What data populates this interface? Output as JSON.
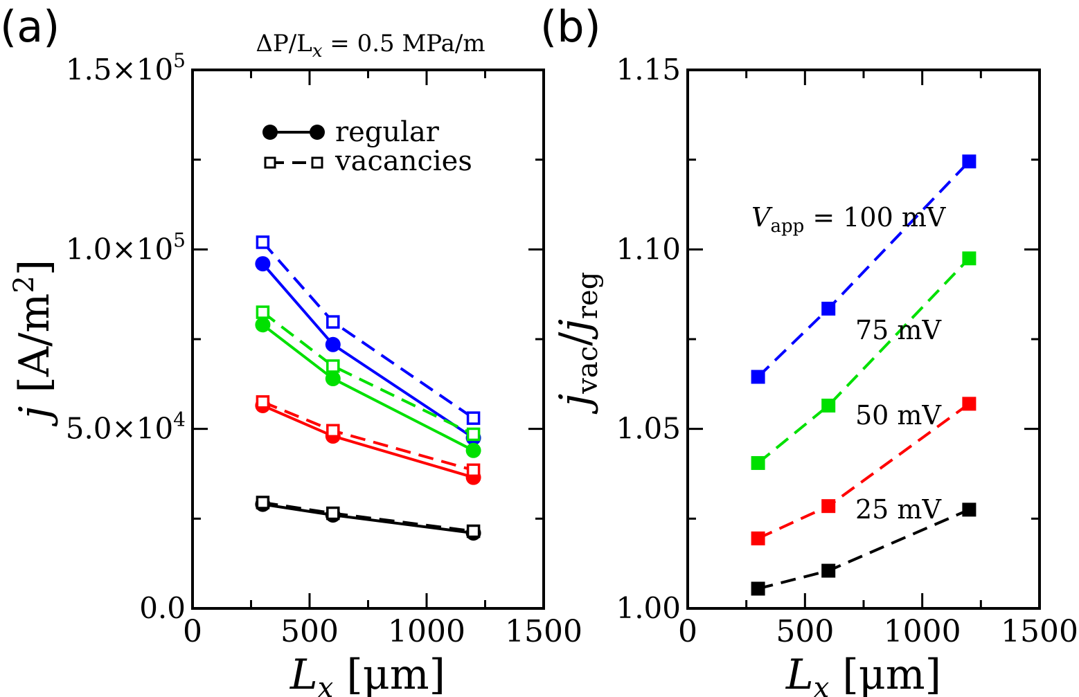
{
  "panel_labels": {
    "a": "(a)",
    "b": "(b)"
  },
  "chart_data": [
    {
      "id": "a",
      "type": "line",
      "title": "ΔP/L_x = 0.5 MPa/m",
      "title_parts": {
        "lhs": "ΔP/L",
        "sub": "x",
        "rhs": " = 0.5 MPa/m"
      },
      "xlabel": "L_x [μm]",
      "xlabel_parts": {
        "main": "L",
        "sub": "x",
        "unit": " [μm]"
      },
      "ylabel": "j [A/m^2]",
      "ylabel_parts": {
        "main": "j",
        "unit": " [A/m",
        "sup": "2",
        "close": "]"
      },
      "xlim": [
        0,
        1500
      ],
      "ylim": [
        0,
        150000
      ],
      "xticks": [
        0,
        500,
        1000,
        1500
      ],
      "xtick_labels": [
        "0",
        "500",
        "1000",
        "1500"
      ],
      "yticks": [
        0,
        50000,
        100000,
        150000
      ],
      "ytick_labels": [
        {
          "mant": "0.0",
          "exp": ""
        },
        {
          "mant": "5.0×10",
          "exp": "4"
        },
        {
          "mant": "1.0×10",
          "exp": "5"
        },
        {
          "mant": "1.5×10",
          "exp": "5"
        }
      ],
      "legend": {
        "position": "top-center",
        "entries": [
          {
            "label": "regular",
            "marker": "filled-circle",
            "line": "solid"
          },
          {
            "label": "vacancies",
            "marker": "open-square",
            "line": "dashed"
          }
        ]
      },
      "x": [
        300,
        600,
        1200
      ],
      "series": [
        {
          "name": "regular 100 mV",
          "color": "#0000ff",
          "style": "solid",
          "marker": "circle",
          "values": [
            96000,
            73500,
            47500
          ]
        },
        {
          "name": "vacancies 100 mV",
          "color": "#0000ff",
          "style": "dashed",
          "marker": "open-square",
          "values": [
            102000,
            79800,
            53000
          ]
        },
        {
          "name": "regular 75 mV",
          "color": "#00e000",
          "style": "solid",
          "marker": "circle",
          "values": [
            79000,
            64000,
            44000
          ]
        },
        {
          "name": "vacancies 75 mV",
          "color": "#00e000",
          "style": "dashed",
          "marker": "open-square",
          "values": [
            82500,
            67500,
            48500
          ]
        },
        {
          "name": "regular 50 mV",
          "color": "#ff0000",
          "style": "solid",
          "marker": "circle",
          "values": [
            56500,
            48000,
            36500
          ]
        },
        {
          "name": "vacancies 50 mV",
          "color": "#ff0000",
          "style": "dashed",
          "marker": "open-square",
          "values": [
            57500,
            49500,
            38500
          ]
        },
        {
          "name": "regular 25 mV",
          "color": "#000000",
          "style": "solid",
          "marker": "circle",
          "values": [
            29000,
            26000,
            21000
          ]
        },
        {
          "name": "vacancies 25 mV",
          "color": "#000000",
          "style": "dashed",
          "marker": "open-square",
          "values": [
            29500,
            26500,
            21500
          ]
        }
      ]
    },
    {
      "id": "b",
      "type": "line",
      "title": "",
      "xlabel": "L_x [μm]",
      "xlabel_parts": {
        "main": "L",
        "sub": "x",
        "unit": " [μm]"
      },
      "ylabel": "j_vac / j_reg",
      "ylabel_parts": {
        "j1": "j",
        "sub1": "vac",
        "slash": "/",
        "j2": "j",
        "sub2": "reg"
      },
      "xlim": [
        0,
        1500
      ],
      "ylim": [
        1.0,
        1.15
      ],
      "xticks": [
        0,
        500,
        1000,
        1500
      ],
      "xtick_labels": [
        "0",
        "500",
        "1000",
        "1500"
      ],
      "yticks": [
        1.0,
        1.05,
        1.1,
        1.15
      ],
      "ytick_labels": [
        "1.00",
        "1.05",
        "1.10",
        "1.15"
      ],
      "x": [
        300,
        600,
        1200
      ],
      "annotations": [
        {
          "text": "V_app = 100 mV",
          "main": "V",
          "sub": "app",
          "rest": " = 100 mV",
          "series": 0
        },
        {
          "text": "75 mV",
          "main": "75 mV",
          "series": 1
        },
        {
          "text": "50 mV",
          "main": "50 mV",
          "series": 2
        },
        {
          "text": "25 mV",
          "main": "25 mV",
          "series": 3
        }
      ],
      "series": [
        {
          "name": "100 mV",
          "color": "#0000ff",
          "style": "dashed",
          "marker": "filled-square",
          "values": [
            1.0645,
            1.0835,
            1.1245
          ]
        },
        {
          "name": "75 mV",
          "color": "#00e000",
          "style": "dashed",
          "marker": "filled-square",
          "values": [
            1.0405,
            1.0565,
            1.0975
          ]
        },
        {
          "name": "50 mV",
          "color": "#ff0000",
          "style": "dashed",
          "marker": "filled-square",
          "values": [
            1.0195,
            1.0285,
            1.057
          ]
        },
        {
          "name": "25 mV",
          "color": "#000000",
          "style": "dashed",
          "marker": "filled-square",
          "values": [
            1.0055,
            1.0105,
            1.0275
          ]
        }
      ]
    }
  ]
}
